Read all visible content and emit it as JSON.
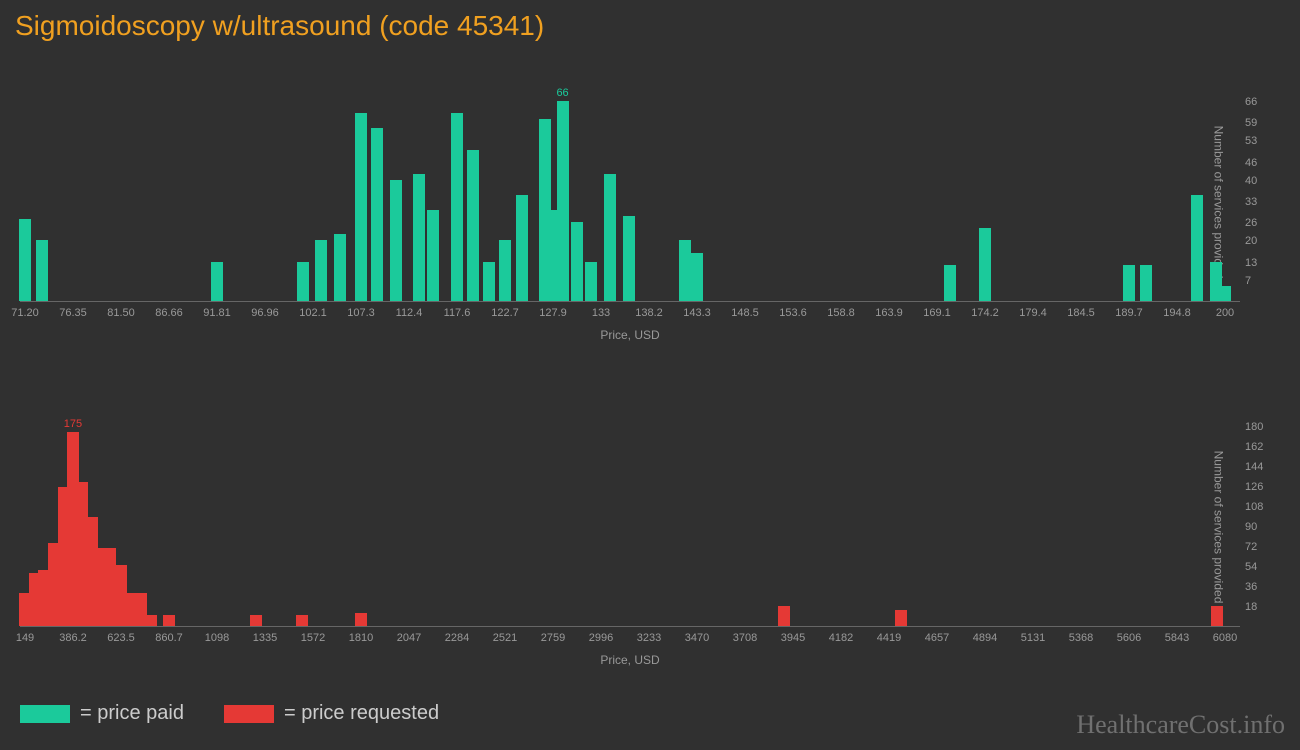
{
  "title": "Sigmoidoscopy w/ultrasound (code 45341)",
  "watermark": "HealthcareCost.info",
  "colors": {
    "bg": "#303030",
    "title": "#f0a020",
    "green": "#1bca9b",
    "red": "#e53935",
    "axis": "#999999"
  },
  "legend": {
    "paid": "= price paid",
    "requested": "= price requested"
  },
  "axis_labels": {
    "x": "Price, USD",
    "y": "Number of services provided"
  },
  "chart_top": {
    "type": "histogram",
    "color": "#1bca9b",
    "x_min": 71.2,
    "x_max": 200,
    "y_min": 0,
    "y_max": 66,
    "peak_value": 66,
    "peak_x": 128.9,
    "x_ticks": [
      "71.20",
      "76.35",
      "81.50",
      "86.66",
      "91.81",
      "96.96",
      "102.1",
      "107.3",
      "112.4",
      "117.6",
      "122.7",
      "127.9",
      "133",
      "138.2",
      "143.3",
      "148.5",
      "153.6",
      "158.8",
      "163.9",
      "169.1",
      "174.2",
      "179.4",
      "184.5",
      "189.7",
      "194.8",
      "200"
    ],
    "y_ticks": [
      7,
      13,
      20,
      26,
      33,
      40,
      46,
      53,
      59,
      66
    ],
    "bars": [
      {
        "x": 71.2,
        "y": 27
      },
      {
        "x": 73.0,
        "y": 20
      },
      {
        "x": 91.8,
        "y": 13
      },
      {
        "x": 101.0,
        "y": 13
      },
      {
        "x": 103.0,
        "y": 20
      },
      {
        "x": 105.0,
        "y": 22
      },
      {
        "x": 107.3,
        "y": 62
      },
      {
        "x": 109.0,
        "y": 57
      },
      {
        "x": 111.0,
        "y": 40
      },
      {
        "x": 113.5,
        "y": 42
      },
      {
        "x": 115.0,
        "y": 30
      },
      {
        "x": 117.6,
        "y": 62
      },
      {
        "x": 119.3,
        "y": 50
      },
      {
        "x": 121.0,
        "y": 13
      },
      {
        "x": 122.7,
        "y": 20
      },
      {
        "x": 124.5,
        "y": 35
      },
      {
        "x": 127.0,
        "y": 60
      },
      {
        "x": 128.0,
        "y": 30
      },
      {
        "x": 128.9,
        "y": 66
      },
      {
        "x": 130.5,
        "y": 26
      },
      {
        "x": 132.0,
        "y": 13
      },
      {
        "x": 134.0,
        "y": 42
      },
      {
        "x": 136.0,
        "y": 28
      },
      {
        "x": 142.0,
        "y": 20
      },
      {
        "x": 143.3,
        "y": 16
      },
      {
        "x": 170.5,
        "y": 12
      },
      {
        "x": 174.2,
        "y": 24
      },
      {
        "x": 189.7,
        "y": 12
      },
      {
        "x": 191.5,
        "y": 12
      },
      {
        "x": 197.0,
        "y": 35
      },
      {
        "x": 199.0,
        "y": 13
      },
      {
        "x": 200.0,
        "y": 5
      }
    ]
  },
  "chart_bottom": {
    "type": "histogram",
    "color": "#e53935",
    "x_min": 149,
    "x_max": 6080,
    "y_min": 0,
    "y_max": 180,
    "peak_value": 175,
    "peak_x": 386,
    "x_ticks": [
      "149",
      "386.2",
      "623.5",
      "860.7",
      "1098",
      "1335",
      "1572",
      "1810",
      "2047",
      "2284",
      "2521",
      "2759",
      "2996",
      "3233",
      "3470",
      "3708",
      "3945",
      "4182",
      "4419",
      "4657",
      "4894",
      "5131",
      "5368",
      "5606",
      "5843",
      "6080"
    ],
    "y_ticks": [
      18,
      36,
      54,
      72,
      90,
      108,
      126,
      144,
      162,
      180
    ],
    "bars": [
      {
        "x": 149,
        "y": 30
      },
      {
        "x": 200,
        "y": 48
      },
      {
        "x": 245,
        "y": 50
      },
      {
        "x": 290,
        "y": 75
      },
      {
        "x": 340,
        "y": 125
      },
      {
        "x": 386,
        "y": 175
      },
      {
        "x": 430,
        "y": 130
      },
      {
        "x": 480,
        "y": 98
      },
      {
        "x": 525,
        "y": 70
      },
      {
        "x": 570,
        "y": 70
      },
      {
        "x": 623,
        "y": 55
      },
      {
        "x": 670,
        "y": 30
      },
      {
        "x": 720,
        "y": 30
      },
      {
        "x": 770,
        "y": 10
      },
      {
        "x": 860,
        "y": 10
      },
      {
        "x": 1290,
        "y": 10
      },
      {
        "x": 1520,
        "y": 10
      },
      {
        "x": 1810,
        "y": 12
      },
      {
        "x": 3900,
        "y": 18
      },
      {
        "x": 4480,
        "y": 14
      },
      {
        "x": 6040,
        "y": 18
      }
    ]
  }
}
